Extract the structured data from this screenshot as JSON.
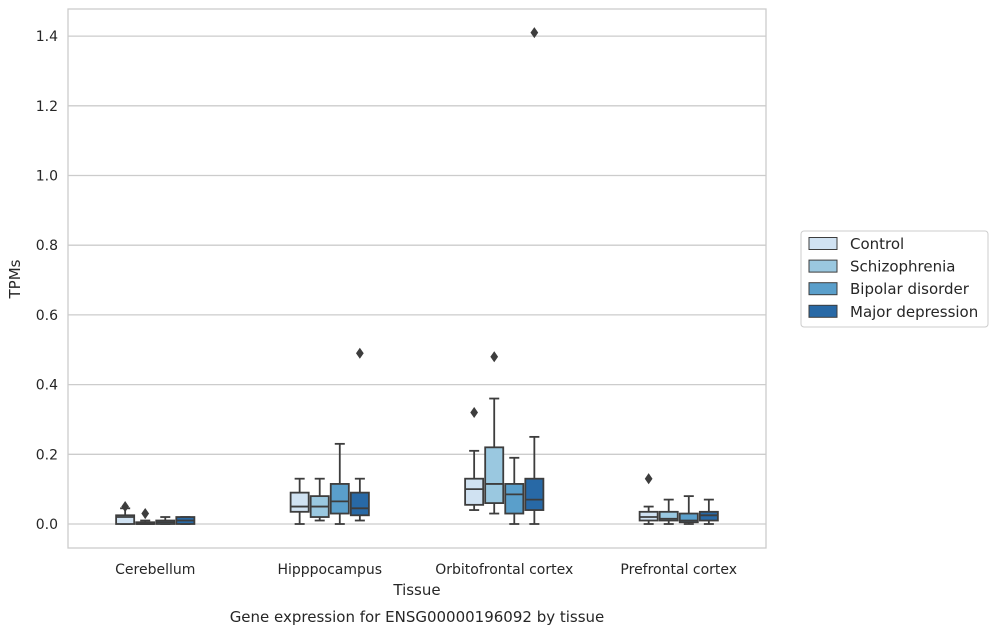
{
  "chart_data": {
    "type": "box",
    "xlabel": "Tissue",
    "ylabel": "TPMs",
    "caption": "Gene expression for ENSG00000196092 by tissue",
    "ylim": [
      -0.07,
      1.48
    ],
    "yticks": [
      "0.0",
      "0.2",
      "0.4",
      "0.6",
      "0.8",
      "1.0",
      "1.2",
      "1.4"
    ],
    "grid": "horizontal",
    "legend_position": "right",
    "categories": [
      "Cerebellum",
      "Hipppocampus",
      "Orbitofrontal cortex",
      "Prefrontal cortex"
    ],
    "series": [
      {
        "name": "Control",
        "color": "#d0e2f2",
        "boxes": [
          {
            "min": 0.0,
            "q1": 0.0,
            "median": 0.02,
            "q3": 0.025,
            "max": 0.045,
            "outliers": [
              0.05
            ]
          },
          {
            "min": 0.0,
            "q1": 0.035,
            "median": 0.05,
            "q3": 0.09,
            "max": 0.13,
            "outliers": []
          },
          {
            "min": 0.04,
            "q1": 0.055,
            "median": 0.1,
            "q3": 0.13,
            "max": 0.21,
            "outliers": [
              0.32
            ]
          },
          {
            "min": 0.0,
            "q1": 0.01,
            "median": 0.02,
            "q3": 0.035,
            "max": 0.05,
            "outliers": [
              0.13
            ]
          }
        ]
      },
      {
        "name": "Schizophrenia",
        "color": "#9ac8e0",
        "boxes": [
          {
            "min": 0.0,
            "q1": 0.0,
            "median": 0.0,
            "q3": 0.005,
            "max": 0.01,
            "outliers": [
              0.03
            ]
          },
          {
            "min": 0.01,
            "q1": 0.02,
            "median": 0.05,
            "q3": 0.08,
            "max": 0.13,
            "outliers": []
          },
          {
            "min": 0.03,
            "q1": 0.06,
            "median": 0.115,
            "q3": 0.22,
            "max": 0.36,
            "outliers": [
              0.48
            ]
          },
          {
            "min": 0.0,
            "q1": 0.01,
            "median": 0.015,
            "q3": 0.035,
            "max": 0.07,
            "outliers": []
          }
        ]
      },
      {
        "name": "Bipolar disorder",
        "color": "#5a9fcb",
        "boxes": [
          {
            "min": 0.0,
            "q1": 0.0,
            "median": 0.005,
            "q3": 0.01,
            "max": 0.02,
            "outliers": []
          },
          {
            "min": 0.0,
            "q1": 0.03,
            "median": 0.065,
            "q3": 0.115,
            "max": 0.23,
            "outliers": []
          },
          {
            "min": 0.0,
            "q1": 0.03,
            "median": 0.085,
            "q3": 0.115,
            "max": 0.19,
            "outliers": []
          },
          {
            "min": 0.0,
            "q1": 0.005,
            "median": 0.01,
            "q3": 0.03,
            "max": 0.08,
            "outliers": []
          }
        ]
      },
      {
        "name": "Major depression",
        "color": "#2869a6",
        "boxes": [
          {
            "min": 0.0,
            "q1": 0.0,
            "median": 0.01,
            "q3": 0.02,
            "max": 0.02,
            "outliers": []
          },
          {
            "min": 0.01,
            "q1": 0.025,
            "median": 0.045,
            "q3": 0.09,
            "max": 0.13,
            "outliers": [
              0.49
            ]
          },
          {
            "min": 0.0,
            "q1": 0.04,
            "median": 0.07,
            "q3": 0.13,
            "max": 0.25,
            "outliers": [
              1.41
            ]
          },
          {
            "min": 0.0,
            "q1": 0.01,
            "median": 0.025,
            "q3": 0.035,
            "max": 0.07,
            "outliers": []
          }
        ]
      }
    ]
  }
}
